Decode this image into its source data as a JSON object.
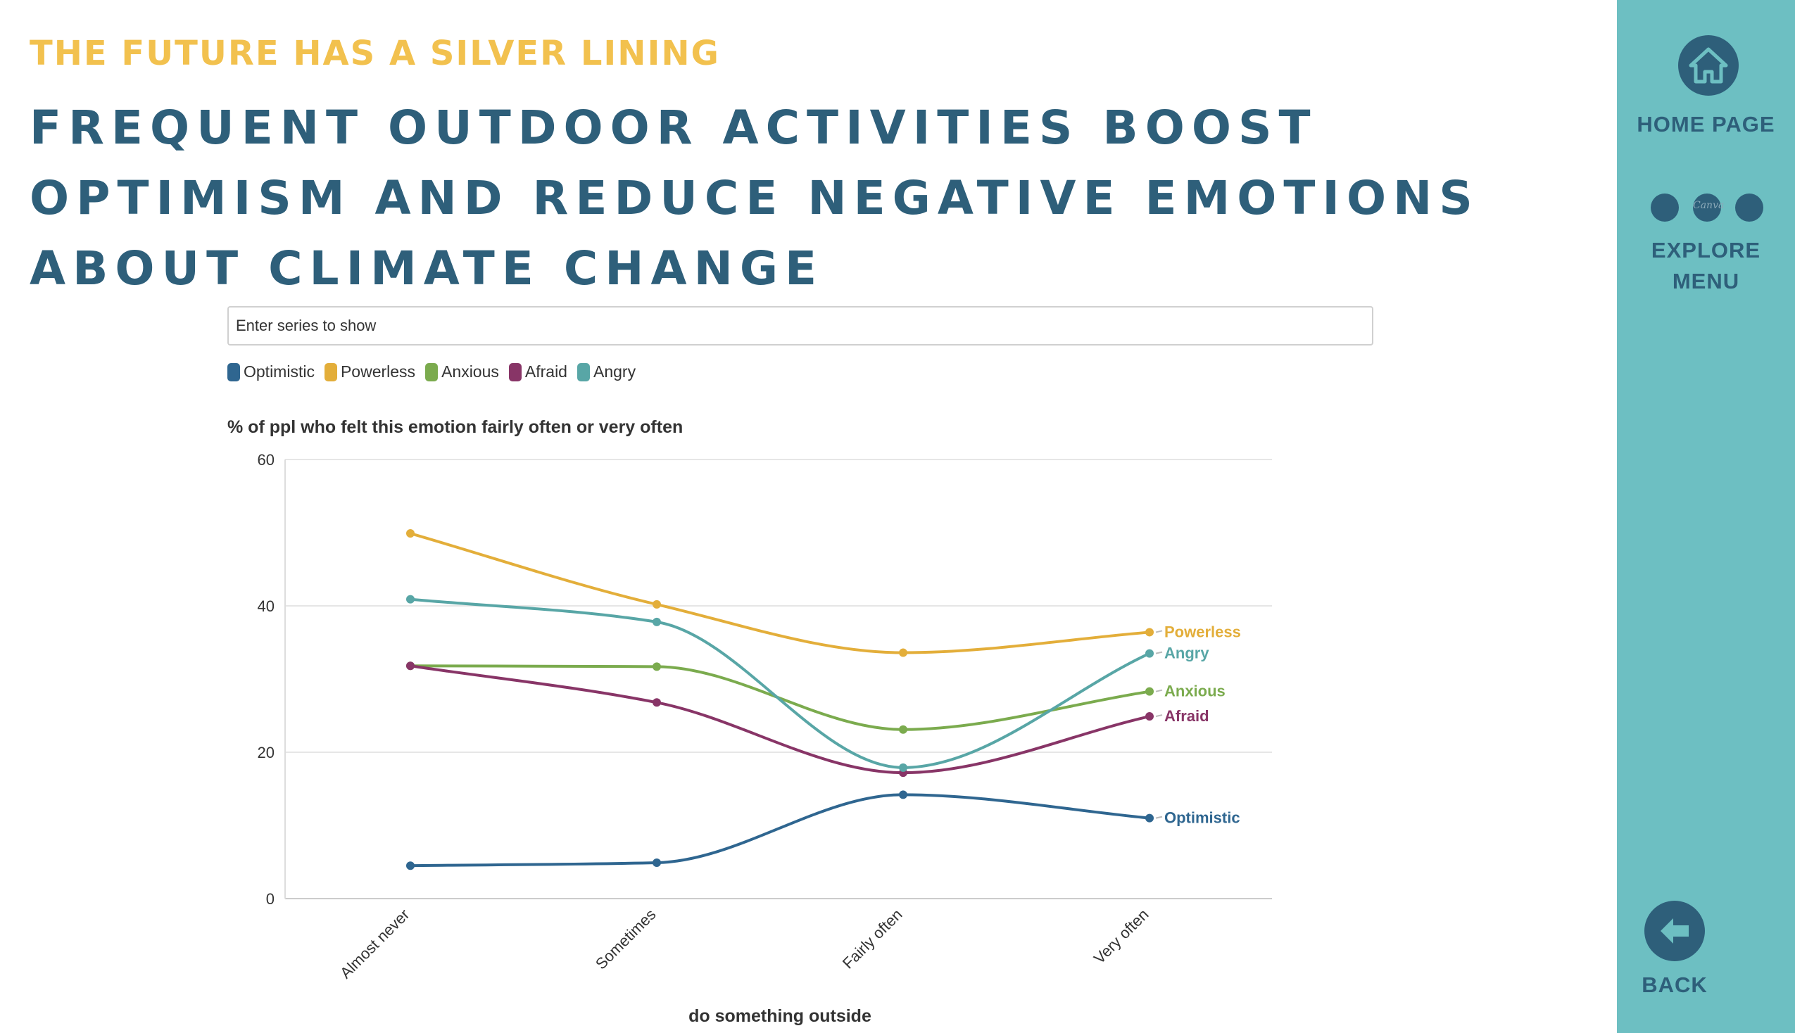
{
  "header": {
    "supertitle": "The future has a silver lining",
    "title_lines": [
      "Frequent outdoor activities boost",
      "optimism and reduce negative emotions",
      "about climate change"
    ]
  },
  "series_filter": {
    "placeholder": "Enter series to show"
  },
  "sidebar": {
    "home_label": "HOME PAGE",
    "explore_label_lines": [
      "EXPLORE",
      "MENU"
    ],
    "canva_mark": "Canva",
    "back_label": "BACK",
    "colors": {
      "background": "#6dbfc2",
      "icon": "#2e5f7a"
    }
  },
  "chart_data": {
    "type": "line",
    "title": "% of ppl who felt this emotion fairly often or very often",
    "xlabel": "do something outside",
    "ylabel": "",
    "categories": [
      "Almost never",
      "Sometimes",
      "Fairly often",
      "Very often"
    ],
    "ylim": [
      0,
      60
    ],
    "yticks": [
      0,
      20,
      40,
      60
    ],
    "grid": true,
    "legend_position": "top-left",
    "series": [
      {
        "name": "Optimistic",
        "color": "#2f6690",
        "values": [
          4.5,
          4.9,
          14.2,
          11.0
        ]
      },
      {
        "name": "Powerless",
        "color": "#e3ae3a",
        "values": [
          49.9,
          40.2,
          33.6,
          36.4
        ]
      },
      {
        "name": "Anxious",
        "color": "#7bab4e",
        "values": [
          31.8,
          31.7,
          23.1,
          28.3
        ]
      },
      {
        "name": "Afraid",
        "color": "#883567",
        "values": [
          31.8,
          26.8,
          17.2,
          24.9
        ]
      },
      {
        "name": "Angry",
        "color": "#58a6a6",
        "values": [
          40.9,
          37.8,
          17.9,
          33.5
        ]
      }
    ]
  }
}
